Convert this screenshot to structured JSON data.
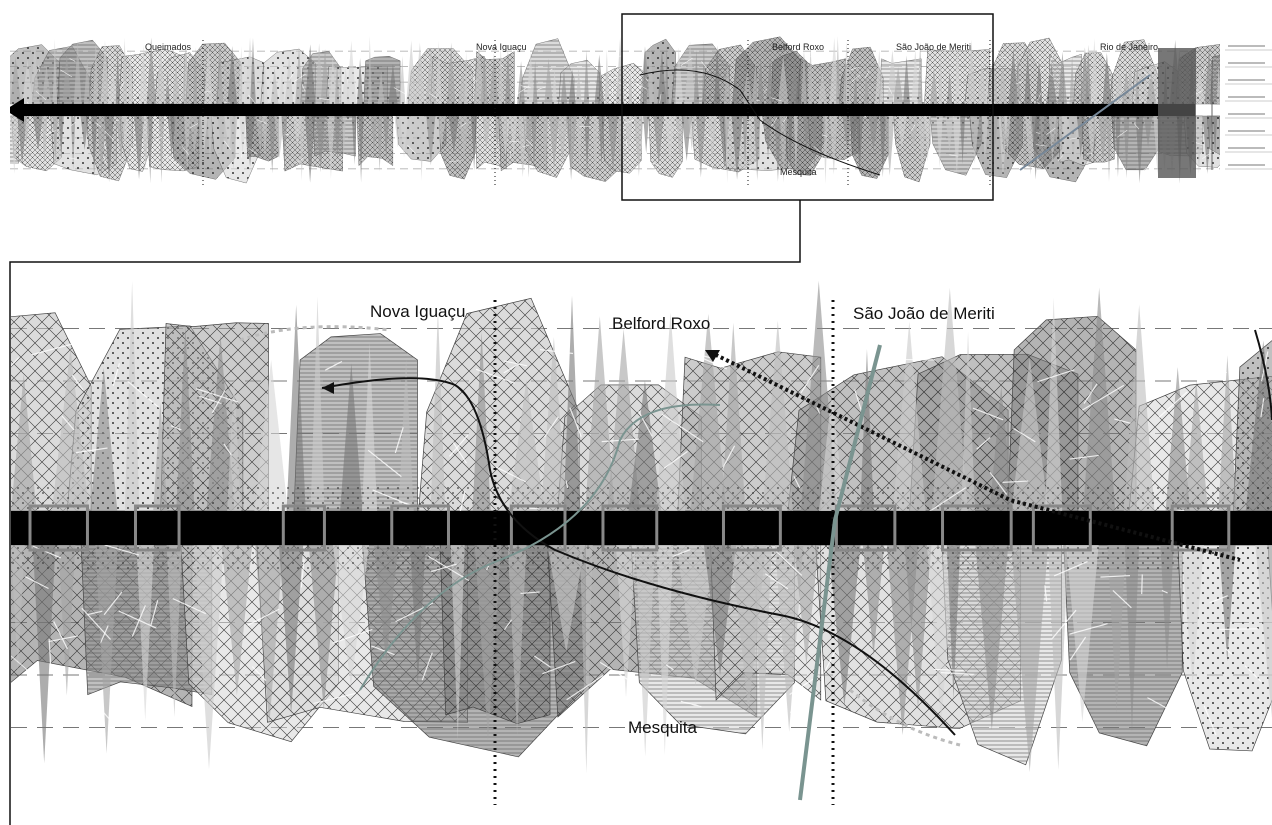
{
  "overview": {
    "labels": [
      "Queimados",
      "Nova Iguaçu",
      "Belford Roxo",
      "São João de Meriti",
      "Rio de Janeiro",
      "Mesquita"
    ]
  },
  "detail": {
    "labels": [
      "Nova Iguaçu",
      "Belford Roxo",
      "São João de Meriti",
      "Mesquita"
    ]
  }
}
